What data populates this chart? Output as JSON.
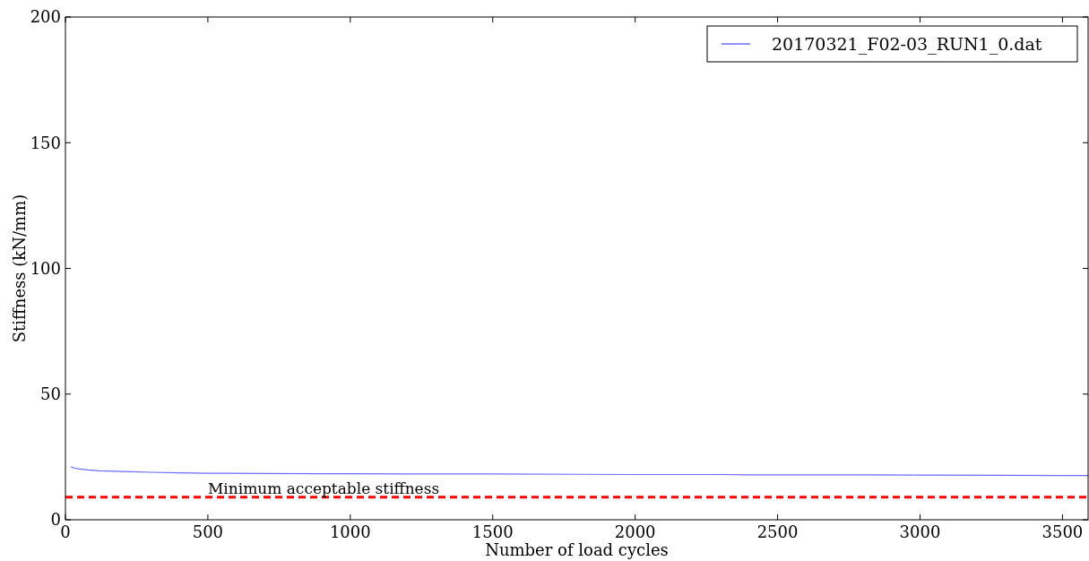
{
  "chart_data": {
    "type": "line",
    "xlabel": "Number of load cycles",
    "ylabel": "Stiffness (kN/mm)",
    "xlim": [
      0,
      3590
    ],
    "ylim": [
      0,
      200
    ],
    "xticks": [
      0,
      500,
      1000,
      1500,
      2000,
      2500,
      3000,
      3500
    ],
    "yticks": [
      0,
      50,
      100,
      150,
      200
    ],
    "grid": false,
    "legend": "top right",
    "marker": "none",
    "line_style": "solid",
    "series": [
      {
        "name": "20170321_F02-03_RUN1_0.dat",
        "color": "#6b6bff",
        "x": [
          20,
          25,
          30,
          50,
          80,
          120,
          200,
          300,
          400,
          500,
          700,
          900,
          1000,
          1200,
          1500,
          1800,
          2000,
          2300,
          2400,
          2500,
          2800,
          3000,
          3300,
          3500,
          3590
        ],
        "values": [
          21.2,
          20.8,
          20.6,
          20.2,
          19.8,
          19.5,
          19.2,
          18.9,
          18.7,
          18.5,
          18.4,
          18.3,
          18.3,
          18.2,
          18.2,
          18.1,
          18.0,
          18.0,
          17.9,
          17.9,
          17.9,
          17.8,
          17.7,
          17.6,
          17.6
        ]
      }
    ],
    "ref_lines": [
      {
        "axis": "y",
        "value": 9,
        "label": "Minimum acceptable stiffness",
        "color": "#ff0000",
        "line_style": "dashed"
      }
    ]
  }
}
